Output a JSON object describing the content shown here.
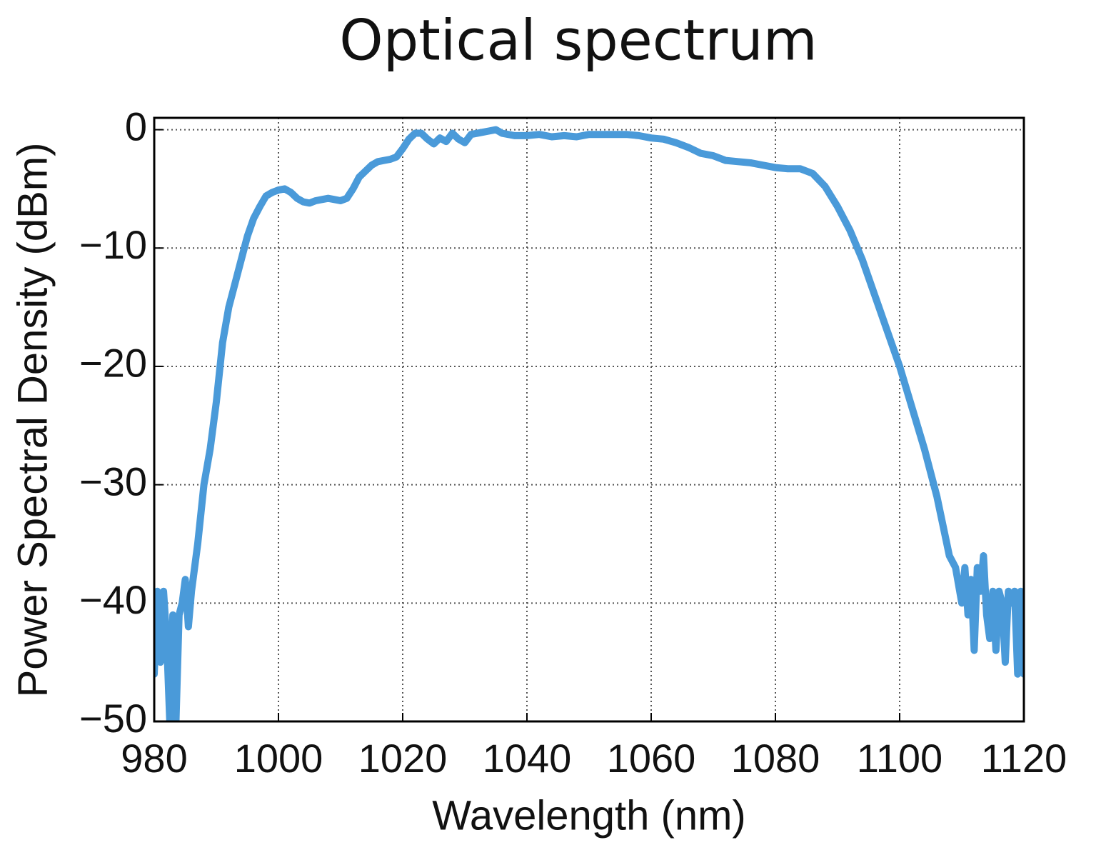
{
  "chart_data": {
    "type": "line",
    "title": "Optical spectrum",
    "x_label": "Wavelength (nm)",
    "y_label": "Power Spectral Density (dBm)",
    "xlim": [
      980,
      1120
    ],
    "ylim": [
      -50,
      1
    ],
    "xticks": [
      980,
      1000,
      1020,
      1040,
      1060,
      1080,
      1100,
      1120
    ],
    "yticks": [
      {
        "value": 0,
        "label": "0"
      },
      {
        "value": -10,
        "label": "−10"
      },
      {
        "value": -20,
        "label": "−20"
      },
      {
        "value": -30,
        "label": "−30"
      },
      {
        "value": -40,
        "label": "−40"
      },
      {
        "value": -50,
        "label": "−50"
      }
    ],
    "grid": true,
    "x": [
      980,
      980.5,
      981,
      981.5,
      982,
      982.5,
      983,
      983.5,
      984,
      984.5,
      985,
      985.5,
      986,
      987,
      988,
      989,
      990,
      991,
      992,
      993,
      994,
      995,
      996,
      997,
      998,
      999,
      1000,
      1001,
      1002,
      1003,
      1004,
      1005,
      1006,
      1007,
      1008,
      1009,
      1010,
      1011,
      1012,
      1013,
      1014,
      1015,
      1016,
      1017,
      1018,
      1019,
      1020,
      1021,
      1022,
      1023,
      1024,
      1025,
      1026,
      1027,
      1028,
      1029,
      1030,
      1031,
      1032,
      1034,
      1035,
      1036,
      1038,
      1040,
      1042,
      1044,
      1046,
      1048,
      1050,
      1052,
      1054,
      1056,
      1058,
      1060,
      1062,
      1064,
      1066,
      1068,
      1070,
      1072,
      1074,
      1076,
      1078,
      1080,
      1082,
      1084,
      1086,
      1088,
      1090,
      1092,
      1094,
      1096,
      1098,
      1100,
      1102,
      1104,
      1106,
      1108,
      1109,
      1110,
      1110.5,
      1111,
      1111.5,
      1112,
      1112.5,
      1113,
      1113.5,
      1114,
      1114.5,
      1115,
      1115.5,
      1116,
      1116.5,
      1117,
      1117.5,
      1118,
      1118.5,
      1119,
      1119.5,
      1120
    ],
    "series": [
      {
        "color": "#4a9ad9",
        "values": [
          -46,
          -39,
          -45,
          -39,
          -43,
          -50,
          -41,
          -50,
          -41,
          -40,
          -38,
          -42,
          -39,
          -35,
          -30,
          -27,
          -23,
          -18,
          -15,
          -13,
          -11,
          -9,
          -7.5,
          -6.5,
          -5.6,
          -5.3,
          -5.1,
          -5.0,
          -5.3,
          -5.8,
          -6.1,
          -6.2,
          -6.0,
          -5.9,
          -5.8,
          -5.9,
          -6.0,
          -5.8,
          -5.0,
          -4.0,
          -3.5,
          -3.0,
          -2.7,
          -2.6,
          -2.5,
          -2.3,
          -1.6,
          -0.8,
          -0.3,
          -0.3,
          -0.8,
          -1.2,
          -0.7,
          -1.0,
          -0.3,
          -0.8,
          -1.1,
          -0.4,
          -0.3,
          -0.1,
          0,
          -0.3,
          -0.5,
          -0.5,
          -0.4,
          -0.6,
          -0.5,
          -0.6,
          -0.4,
          -0.4,
          -0.4,
          -0.4,
          -0.5,
          -0.7,
          -0.8,
          -1.1,
          -1.5,
          -2.0,
          -2.2,
          -2.6,
          -2.7,
          -2.8,
          -3.0,
          -3.2,
          -3.3,
          -3.3,
          -3.7,
          -4.8,
          -6.5,
          -8.5,
          -11,
          -14,
          -17,
          -20,
          -23.5,
          -27,
          -31,
          -36,
          -37,
          -40,
          -37,
          -41,
          -38,
          -44,
          -37,
          -39,
          -36,
          -41,
          -43,
          -39,
          -44,
          -39,
          -40,
          -45,
          -39,
          -40,
          -39,
          -46,
          -39,
          -46
        ]
      }
    ]
  }
}
